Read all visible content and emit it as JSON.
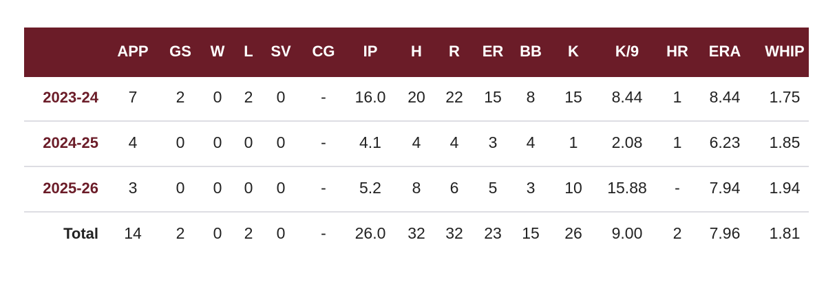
{
  "table": {
    "columns": [
      "APP",
      "GS",
      "W",
      "L",
      "SV",
      "CG",
      "IP",
      "H",
      "R",
      "ER",
      "BB",
      "K",
      "K/9",
      "HR",
      "ERA",
      "WHIP"
    ],
    "rows": [
      {
        "label": "2023-24",
        "cells": [
          "7",
          "2",
          "0",
          "2",
          "0",
          "-",
          "16.0",
          "20",
          "22",
          "15",
          "8",
          "15",
          "8.44",
          "1",
          "8.44",
          "1.75"
        ]
      },
      {
        "label": "2024-25",
        "cells": [
          "4",
          "0",
          "0",
          "0",
          "0",
          "-",
          "4.1",
          "4",
          "4",
          "3",
          "4",
          "1",
          "2.08",
          "1",
          "6.23",
          "1.85"
        ]
      },
      {
        "label": "2025-26",
        "cells": [
          "3",
          "0",
          "0",
          "0",
          "0",
          "-",
          "5.2",
          "8",
          "6",
          "5",
          "3",
          "10",
          "15.88",
          "-",
          "7.94",
          "1.94"
        ]
      },
      {
        "label": "Total",
        "cells": [
          "14",
          "2",
          "0",
          "2",
          "0",
          "-",
          "26.0",
          "32",
          "32",
          "23",
          "15",
          "26",
          "9.00",
          "2",
          "7.96",
          "1.81"
        ]
      }
    ]
  }
}
